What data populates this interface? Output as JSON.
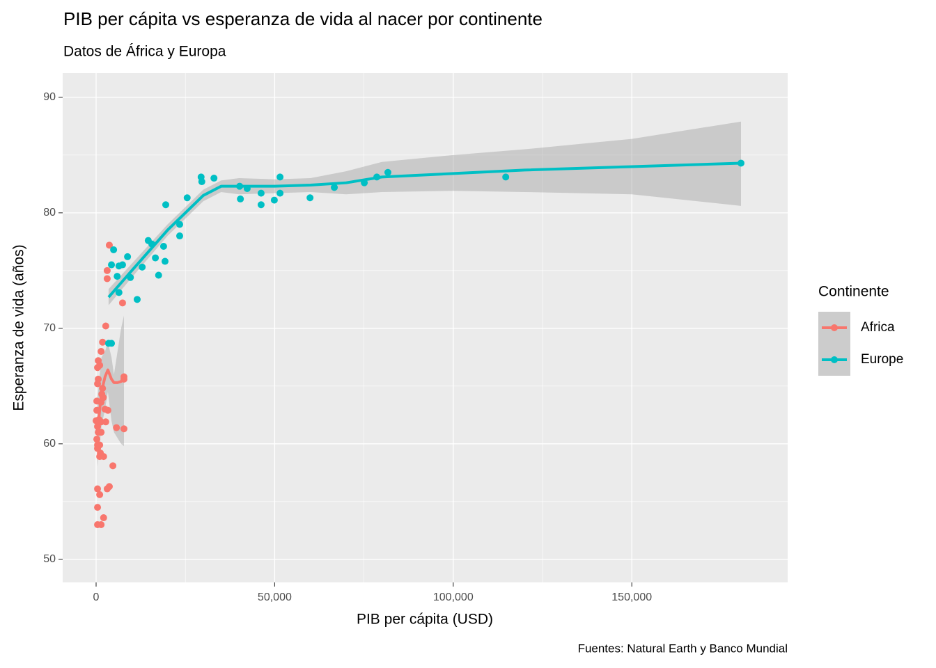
{
  "chart_data": {
    "type": "scatter",
    "title": "PIB per cápita vs esperanza de vida al nacer por continente",
    "subtitle": "Datos de África y Europa",
    "x_label": "PIB per cápita  (USD)",
    "y_label": "Esperanza de vida (años)",
    "caption": "Fuentes: Natural Earth y Banco Mundial",
    "legend_title": "Continente",
    "legend_position": "right",
    "grid": true,
    "xlim": [
      -9360,
      193640
    ],
    "ylim": [
      48.0,
      92.1
    ],
    "xticks": [
      0,
      {
        "value": 50000,
        "label": "50,000"
      },
      {
        "value": 100000,
        "label": "100,000"
      },
      {
        "value": 150000,
        "label": "150,000"
      }
    ],
    "yticks": [
      50,
      60,
      70,
      80,
      90
    ],
    "series": [
      {
        "name": "Africa",
        "color": "#F8766D",
        "x": [
          3700,
          3100,
          3100,
          7400,
          2700,
          1800,
          1400,
          600,
          400,
          1000,
          600,
          400,
          1800,
          1600,
          1400,
          200,
          2000,
          200,
          2500,
          3300,
          0,
          800,
          1400,
          2700,
          400,
          5700,
          7800,
          600,
          1400,
          200,
          400,
          1000,
          400,
          1200,
          2100,
          1000,
          4700,
          400,
          3700,
          3100,
          1000,
          400,
          2100,
          400,
          1400,
          7800,
          7800
        ],
        "values": [
          77.2,
          75.0,
          74.3,
          72.2,
          70.2,
          68.8,
          68.0,
          67.2,
          66.6,
          66.8,
          65.6,
          65.2,
          64.8,
          64.3,
          63.6,
          63.7,
          64.0,
          62.9,
          63.0,
          62.9,
          62.0,
          62.1,
          61.9,
          61.9,
          61.5,
          61.4,
          61.3,
          61.0,
          61.0,
          60.4,
          59.9,
          59.9,
          59.6,
          59.2,
          58.9,
          58.9,
          58.1,
          56.1,
          56.3,
          56.1,
          55.6,
          54.5,
          53.6,
          53.0,
          53.0,
          65.8,
          65.6
        ],
        "fit": {
          "x": [
            400,
            1500,
            2500,
            3300,
            4300,
            5000,
            6000,
            7000,
            7800
          ],
          "y": [
            61.0,
            64.5,
            65.8,
            66.4,
            65.6,
            65.3,
            65.3,
            65.4,
            65.7
          ],
          "lower": [
            58.0,
            61.5,
            63.0,
            64.5,
            62.0,
            61.0,
            60.5,
            60.0,
            59.8
          ],
          "upper": [
            64.0,
            67.5,
            68.0,
            68.8,
            67.5,
            66.0,
            68.0,
            70.0,
            71.1
          ]
        }
      },
      {
        "name": "Europe",
        "color": "#00BFC4",
        "x": [
          180570,
          114700,
          81700,
          78600,
          75100,
          66700,
          59900,
          51500,
          51500,
          49900,
          46200,
          46200,
          42300,
          40200,
          40400,
          33000,
          29400,
          29600,
          25500,
          23400,
          23400,
          19500,
          18900,
          19300,
          17500,
          16600,
          15600,
          14600,
          12900,
          11500,
          9600,
          8800,
          7400,
          6400,
          5900,
          6400,
          4900,
          4300,
          4300,
          3500
        ],
        "values": [
          84.3,
          83.1,
          83.5,
          83.1,
          82.6,
          82.2,
          81.3,
          83.1,
          81.7,
          81.1,
          81.7,
          80.7,
          82.1,
          82.3,
          81.2,
          83.0,
          83.1,
          82.7,
          81.3,
          79.0,
          78.0,
          80.7,
          77.1,
          75.8,
          74.6,
          76.1,
          77.3,
          77.6,
          75.3,
          72.5,
          74.4,
          76.2,
          75.5,
          75.4,
          74.5,
          73.1,
          76.8,
          75.5,
          68.7,
          68.7
        ],
        "fit": {
          "x": [
            3500,
            10000,
            20000,
            30000,
            35000,
            40000,
            50000,
            60000,
            70000,
            80000,
            100000,
            120000,
            150000,
            180570
          ],
          "y": [
            72.7,
            75.0,
            78.5,
            81.5,
            82.3,
            82.3,
            82.3,
            82.4,
            82.6,
            83.1,
            83.4,
            83.7,
            84.0,
            84.3
          ],
          "lower": [
            72.0,
            74.4,
            78.0,
            81.0,
            81.8,
            81.6,
            81.7,
            81.8,
            81.6,
            81.8,
            81.9,
            81.8,
            81.6,
            80.6
          ],
          "upper": [
            73.4,
            75.6,
            79.0,
            82.0,
            82.8,
            83.0,
            82.9,
            83.0,
            83.6,
            84.4,
            85.0,
            85.5,
            86.4,
            87.9
          ]
        }
      }
    ]
  }
}
